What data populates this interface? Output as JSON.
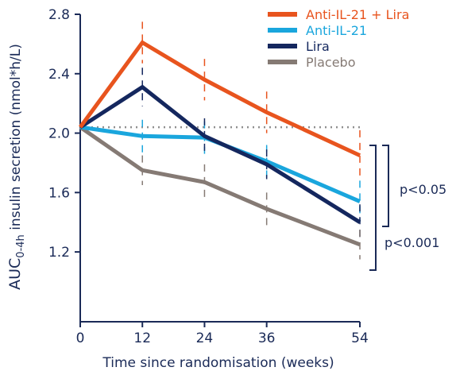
{
  "chart_data": {
    "type": "line",
    "xlabel": "Time since randomisation (weeks)",
    "ylabel_main": "AUC",
    "ylabel_sub": "0-4h",
    "ylabel_rest": " insulin secretion (nmol*h/L)",
    "x": [
      0,
      12,
      24,
      36,
      54
    ],
    "x_ticks": [
      "0",
      "12",
      "24",
      "36",
      "54"
    ],
    "y_ticks": [
      "1.2",
      "1.6",
      "2.0",
      "2.4",
      "2.8"
    ],
    "y_tick_values": [
      1.2,
      1.6,
      2.0,
      2.4,
      2.8
    ],
    "ylim": [
      0.73,
      2.8
    ],
    "xlim": [
      0,
      54
    ],
    "baseline_reference": 2.04,
    "series": [
      {
        "name": "Anti-IL-21 + Lira",
        "color": "#e8541e",
        "values": [
          2.04,
          2.61,
          2.36,
          2.14,
          1.85
        ],
        "err": [
          0,
          0.14,
          0.14,
          0.14,
          0.17
        ]
      },
      {
        "name": "Anti-IL-21",
        "color": "#1aa6dd",
        "values": [
          2.04,
          1.98,
          1.97,
          1.81,
          1.54
        ],
        "err": [
          0,
          0.11,
          0.11,
          0.11,
          0.14
        ]
      },
      {
        "name": "Lira",
        "color": "#14275e",
        "values": [
          2.04,
          2.31,
          1.98,
          1.79,
          1.4
        ],
        "err": [
          0,
          0.13,
          0.12,
          0.1,
          0.12
        ]
      },
      {
        "name": "Placebo",
        "color": "#857a74",
        "values": [
          2.04,
          1.75,
          1.67,
          1.49,
          1.25
        ],
        "err": [
          0,
          0.1,
          0.12,
          0.11,
          0.1
        ]
      }
    ],
    "annotations": [
      "p<0.05",
      "p<0.001"
    ]
  }
}
